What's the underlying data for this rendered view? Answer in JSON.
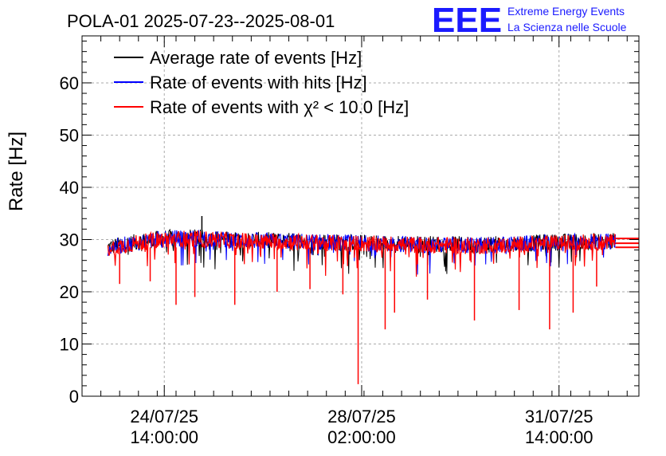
{
  "chart_data": {
    "type": "line",
    "title": "POLA-01 2025-07-23--2025-08-01",
    "ylabel": "Rate [Hz]",
    "xlabel": "",
    "ylim": [
      0,
      69
    ],
    "yticks": [
      0,
      10,
      20,
      30,
      40,
      50,
      60
    ],
    "xlim": [
      "2025-07-23T03:00",
      "2025-08-02T00:00"
    ],
    "xticks": [
      {
        "date": "2025-07-24T14:00",
        "label_date": "24/07/25",
        "label_time": "14:00:00"
      },
      {
        "date": "2025-07-28T02:00",
        "label_date": "28/07/25",
        "label_time": "02:00:00"
      },
      {
        "date": "2025-07-31T14:00",
        "label_date": "31/07/25",
        "label_time": "14:00:00"
      }
    ],
    "grid": true,
    "legend_position": "top-left",
    "series": [
      {
        "name": "Average rate of events [Hz]",
        "color": "#000000",
        "x": [
          "2025-07-23T14:00",
          "2025-07-24T02:00",
          "2025-07-24T14:00",
          "2025-07-25T02:00",
          "2025-07-25T14:00",
          "2025-07-26T02:00",
          "2025-07-26T14:00",
          "2025-07-27T02:00",
          "2025-07-27T14:00",
          "2025-07-28T02:00",
          "2025-07-28T14:00",
          "2025-07-29T02:00",
          "2025-07-29T14:00",
          "2025-07-30T02:00",
          "2025-07-30T14:00",
          "2025-07-31T02:00",
          "2025-07-31T14:00",
          "2025-08-01T02:00"
        ],
        "y": [
          28.5,
          29.5,
          30.3,
          30.4,
          30.1,
          29.9,
          29.8,
          29.7,
          29.5,
          29.4,
          29.3,
          29.2,
          29.1,
          29.0,
          29.1,
          29.3,
          29.5,
          29.7
        ]
      },
      {
        "name": "Rate of events with hits [Hz]",
        "color": "#0000ff",
        "x": [
          "2025-07-23T14:00",
          "2025-07-24T02:00",
          "2025-07-24T14:00",
          "2025-07-25T02:00",
          "2025-07-25T14:00",
          "2025-07-26T02:00",
          "2025-07-26T14:00",
          "2025-07-27T02:00",
          "2025-07-27T14:00",
          "2025-07-28T02:00",
          "2025-07-28T14:00",
          "2025-07-29T02:00",
          "2025-07-29T14:00",
          "2025-07-30T02:00",
          "2025-07-30T14:00",
          "2025-07-31T02:00",
          "2025-07-31T14:00",
          "2025-08-01T02:00"
        ],
        "y": [
          28.4,
          29.4,
          30.2,
          30.3,
          30.0,
          29.8,
          29.7,
          29.6,
          29.4,
          29.3,
          29.2,
          29.1,
          29.0,
          28.9,
          29.0,
          29.2,
          29.4,
          29.6
        ]
      },
      {
        "name": "Rate of events with χ² < 10.0 [Hz]",
        "color": "#ff0000",
        "x": [
          "2025-07-23T14:00",
          "2025-07-24T02:00",
          "2025-07-24T14:00",
          "2025-07-25T02:00",
          "2025-07-25T14:00",
          "2025-07-26T02:00",
          "2025-07-26T14:00",
          "2025-07-27T02:00",
          "2025-07-27T14:00",
          "2025-07-28T02:00",
          "2025-07-28T14:00",
          "2025-07-29T02:00",
          "2025-07-29T14:00",
          "2025-07-30T02:00",
          "2025-07-30T14:00",
          "2025-07-31T02:00",
          "2025-07-31T14:00",
          "2025-08-01T02:00"
        ],
        "y": [
          28.3,
          29.3,
          30.1,
          30.2,
          29.9,
          29.7,
          29.6,
          29.5,
          29.3,
          29.2,
          29.1,
          29.0,
          28.9,
          28.8,
          28.9,
          29.1,
          29.3,
          29.5
        ]
      }
    ],
    "plateau_levels": [
      28.5,
      29.3,
      30.2
    ],
    "dips": [
      {
        "date": "2025-07-23T19:00",
        "y": 21.5
      },
      {
        "date": "2025-07-24T08:00",
        "y": 22.0
      },
      {
        "date": "2025-07-24T19:00",
        "y": 17.5
      },
      {
        "date": "2025-07-25T03:00",
        "y": 19.0
      },
      {
        "date": "2025-07-25T20:00",
        "y": 17.5
      },
      {
        "date": "2025-07-26T14:00",
        "y": 20.0
      },
      {
        "date": "2025-07-27T04:00",
        "y": 20.5
      },
      {
        "date": "2025-07-27T18:00",
        "y": 19.5
      },
      {
        "date": "2025-07-28T00:30",
        "y": 2.3
      },
      {
        "date": "2025-07-28T12:00",
        "y": 12.8
      },
      {
        "date": "2025-07-28T16:00",
        "y": 16.0
      },
      {
        "date": "2025-07-29T06:00",
        "y": 18.5
      },
      {
        "date": "2025-07-30T02:00",
        "y": 14.5
      },
      {
        "date": "2025-07-30T21:00",
        "y": 16.5
      },
      {
        "date": "2025-07-31T10:00",
        "y": 12.8
      },
      {
        "date": "2025-07-31T20:00",
        "y": 16.0
      },
      {
        "date": "2025-08-01T06:00",
        "y": 21.0
      }
    ],
    "spike": {
      "date": "2025-07-25T06:00",
      "y": 34.5
    }
  },
  "logo": {
    "text": "EEE",
    "line1": "Extreme Energy Events",
    "line2": "La Scienza nelle Scuole"
  }
}
